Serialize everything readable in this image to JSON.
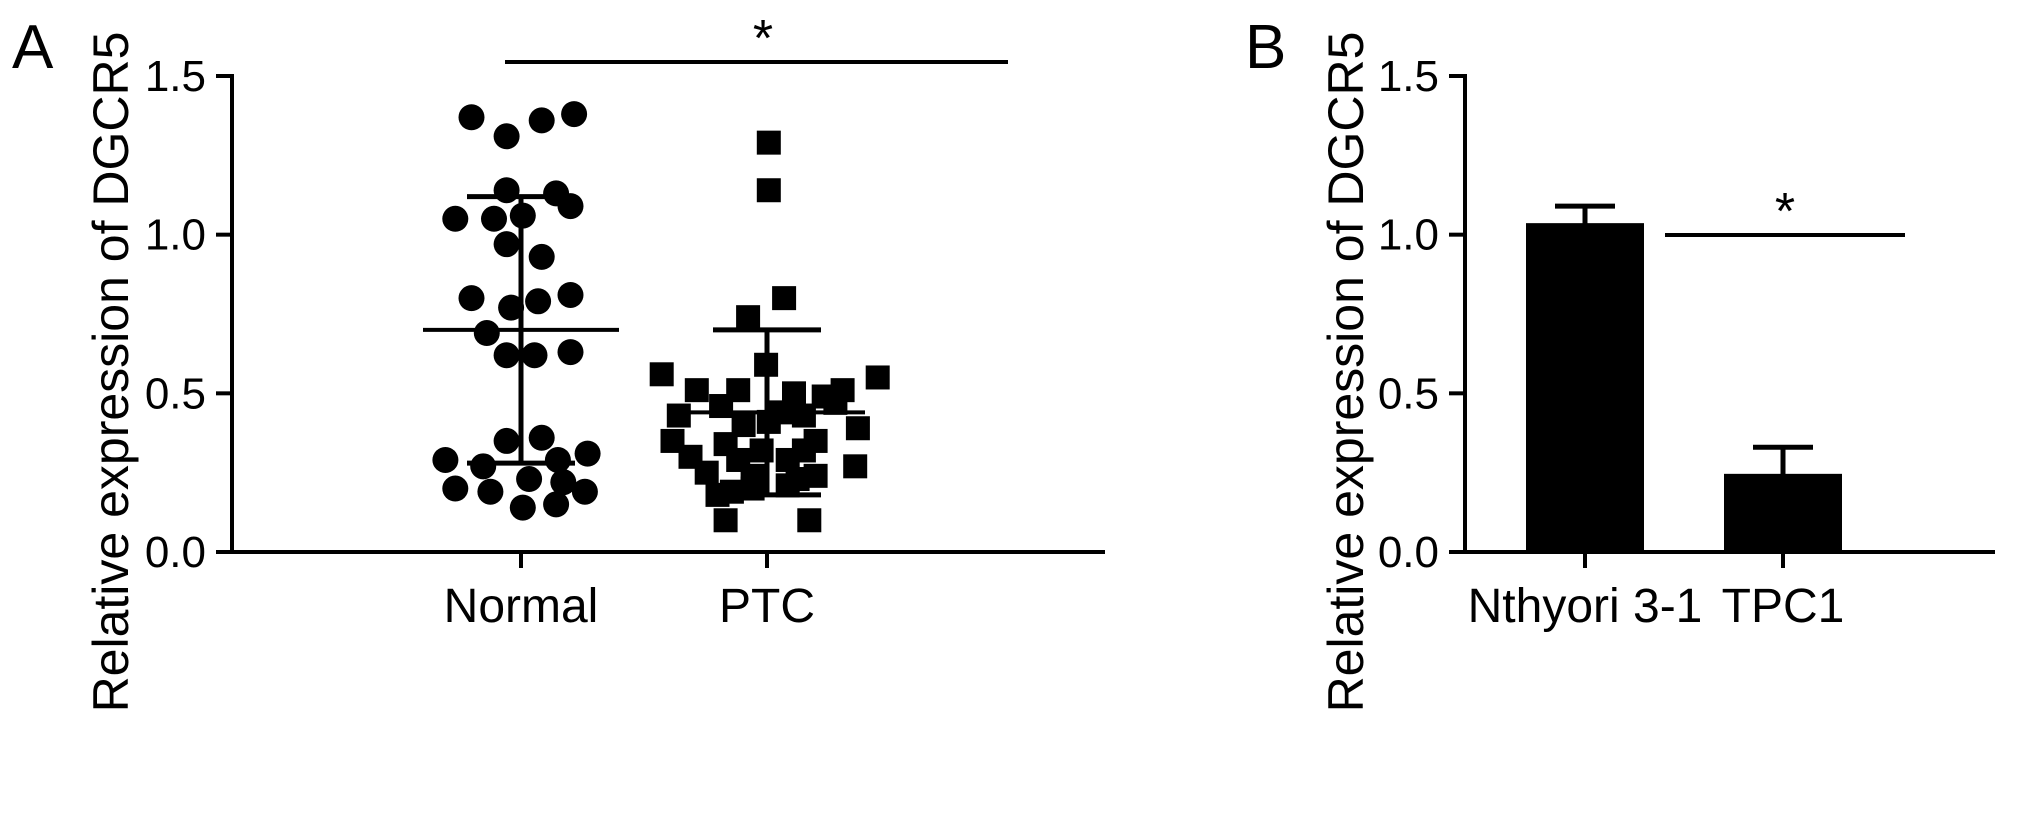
{
  "chart_data": [
    {
      "panel": "A",
      "type": "scatter",
      "ylabel": "Relative expression of DGCR5",
      "ylim": [
        0,
        1.5
      ],
      "yticks": [
        "0.0",
        "0.5",
        "1.0",
        "1.5"
      ],
      "categories": [
        "Normal",
        "PTC"
      ],
      "significance": "*",
      "groups": [
        {
          "category": "Normal",
          "marker": "circle",
          "mean": 0.7,
          "sd_upper": 1.12,
          "sd_lower": 0.28,
          "points": [
            {
              "offset": -0.55,
              "y": 1.37
            },
            {
              "offset": 0.23,
              "y": 1.36
            },
            {
              "offset": 0.59,
              "y": 1.38
            },
            {
              "offset": -0.16,
              "y": 1.31
            },
            {
              "offset": -0.16,
              "y": 1.14
            },
            {
              "offset": 0.39,
              "y": 1.13
            },
            {
              "offset": 0.55,
              "y": 1.09
            },
            {
              "offset": -0.73,
              "y": 1.05
            },
            {
              "offset": -0.3,
              "y": 1.05
            },
            {
              "offset": 0.02,
              "y": 1.06
            },
            {
              "offset": -0.16,
              "y": 0.97
            },
            {
              "offset": 0.23,
              "y": 0.93
            },
            {
              "offset": -0.55,
              "y": 0.8
            },
            {
              "offset": -0.11,
              "y": 0.77
            },
            {
              "offset": 0.19,
              "y": 0.79
            },
            {
              "offset": 0.55,
              "y": 0.81
            },
            {
              "offset": -0.38,
              "y": 0.69
            },
            {
              "offset": -0.16,
              "y": 0.62
            },
            {
              "offset": 0.15,
              "y": 0.62
            },
            {
              "offset": 0.55,
              "y": 0.63
            },
            {
              "offset": -0.16,
              "y": 0.35
            },
            {
              "offset": 0.23,
              "y": 0.36
            },
            {
              "offset": -0.84,
              "y": 0.29
            },
            {
              "offset": -0.42,
              "y": 0.27
            },
            {
              "offset": 0.41,
              "y": 0.29
            },
            {
              "offset": 0.74,
              "y": 0.31
            },
            {
              "offset": -0.73,
              "y": 0.2
            },
            {
              "offset": -0.34,
              "y": 0.19
            },
            {
              "offset": 0.09,
              "y": 0.23
            },
            {
              "offset": 0.47,
              "y": 0.22
            },
            {
              "offset": 0.71,
              "y": 0.19
            },
            {
              "offset": 0.02,
              "y": 0.14
            },
            {
              "offset": 0.39,
              "y": 0.15
            }
          ]
        },
        {
          "category": "PTC",
          "marker": "square",
          "mean": 0.44,
          "sd_upper": 0.7,
          "sd_lower": 0.18,
          "points": [
            {
              "offset": 0.02,
              "y": 1.29
            },
            {
              "offset": 0.02,
              "y": 1.14
            },
            {
              "offset": 0.19,
              "y": 0.8
            },
            {
              "offset": -0.21,
              "y": 0.74
            },
            {
              "offset": -0.01,
              "y": 0.59
            },
            {
              "offset": -1.17,
              "y": 0.56
            },
            {
              "offset": 1.23,
              "y": 0.55
            },
            {
              "offset": -0.78,
              "y": 0.51
            },
            {
              "offset": -0.32,
              "y": 0.51
            },
            {
              "offset": 0.3,
              "y": 0.5
            },
            {
              "offset": 0.63,
              "y": 0.49
            },
            {
              "offset": 0.84,
              "y": 0.51
            },
            {
              "offset": -0.51,
              "y": 0.46
            },
            {
              "offset": 0.15,
              "y": 0.44
            },
            {
              "offset": 0.76,
              "y": 0.47
            },
            {
              "offset": -0.98,
              "y": 0.43
            },
            {
              "offset": 0.41,
              "y": 0.43
            },
            {
              "offset": -0.26,
              "y": 0.4
            },
            {
              "offset": 0.02,
              "y": 0.41
            },
            {
              "offset": 1.01,
              "y": 0.39
            },
            {
              "offset": -1.05,
              "y": 0.35
            },
            {
              "offset": -0.46,
              "y": 0.34
            },
            {
              "offset": -0.06,
              "y": 0.32
            },
            {
              "offset": 0.41,
              "y": 0.32
            },
            {
              "offset": 0.54,
              "y": 0.35
            },
            {
              "offset": -0.85,
              "y": 0.3
            },
            {
              "offset": -0.32,
              "y": 0.29
            },
            {
              "offset": 0.23,
              "y": 0.29
            },
            {
              "offset": -0.67,
              "y": 0.25
            },
            {
              "offset": -0.16,
              "y": 0.24
            },
            {
              "offset": 0.34,
              "y": 0.23
            },
            {
              "offset": 0.98,
              "y": 0.27
            },
            {
              "offset": -0.39,
              "y": 0.19
            },
            {
              "offset": -0.16,
              "y": 0.2
            },
            {
              "offset": 0.23,
              "y": 0.21
            },
            {
              "offset": 0.54,
              "y": 0.24
            },
            {
              "offset": -0.55,
              "y": 0.18
            },
            {
              "offset": -0.46,
              "y": 0.1
            },
            {
              "offset": 0.47,
              "y": 0.1
            }
          ]
        }
      ]
    },
    {
      "panel": "B",
      "type": "bar",
      "ylabel": "Relative expression of DGCR5",
      "ylim": [
        0,
        1.5
      ],
      "yticks": [
        "0.0",
        "0.5",
        "1.0",
        "1.5"
      ],
      "categories": [
        "Nthyori 3-1",
        "TPC1"
      ],
      "values": [
        1.03,
        0.24
      ],
      "errors": [
        0.06,
        0.09
      ],
      "significance": "*"
    }
  ]
}
